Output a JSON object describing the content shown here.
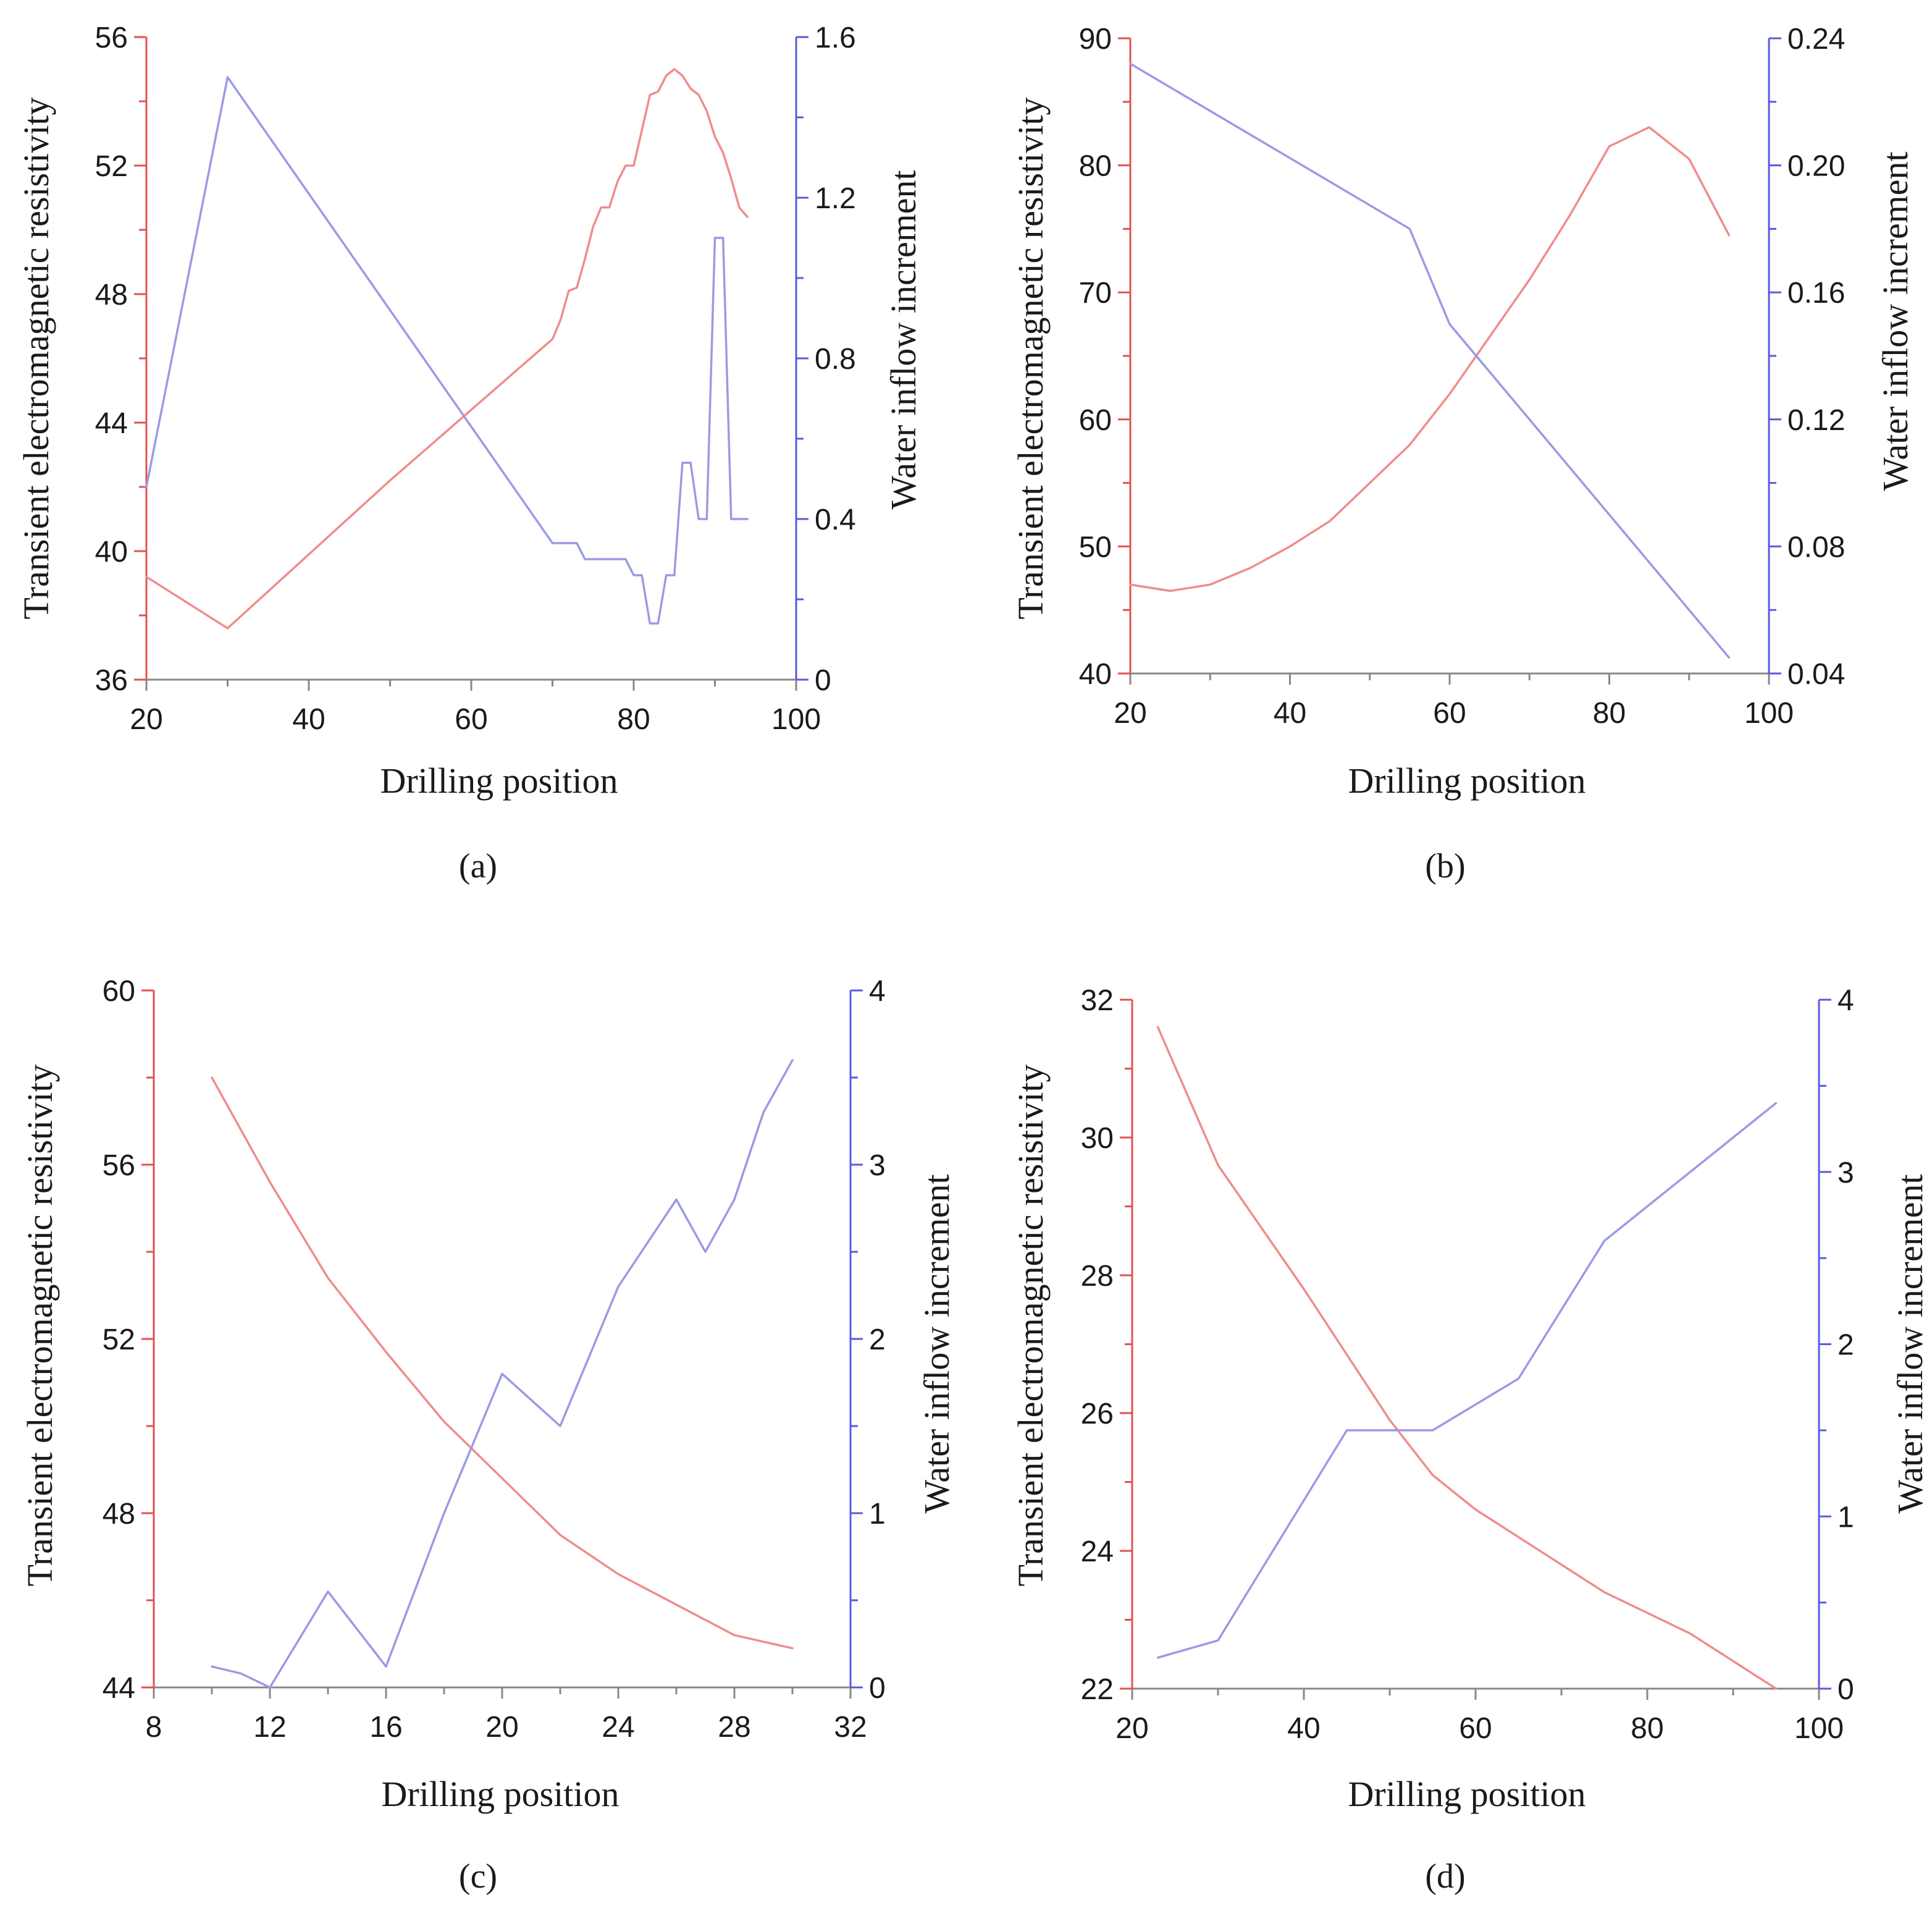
{
  "figure": {
    "left_color": "#e35050",
    "right_color": "#5a5ae0",
    "left_line_color": "#f08c8c",
    "right_line_color": "#9a9ae6",
    "x_axis_color": "#888888"
  },
  "chart_data": [
    {
      "type": "line",
      "panel_label": "(a)",
      "xlabel": "Drilling position",
      "ylabel": "Transient electromagnetic resistivity",
      "y2label": "Water inflow increment",
      "xlim": [
        20,
        100
      ],
      "xticks": [
        "20",
        "40",
        "60",
        "80",
        "100"
      ],
      "ylim": [
        36,
        56
      ],
      "yticks": [
        "36",
        "40",
        "44",
        "48",
        "52",
        "56"
      ],
      "y2lim": [
        0,
        1.6
      ],
      "y2ticks": [
        "0",
        "0.4",
        "0.8",
        "1.2",
        "1.6"
      ],
      "series": [
        {
          "name": "Transient electromagnetic resistivity",
          "axis": "left",
          "x": [
            20,
            30,
            40,
            50,
            60,
            70,
            71,
            72,
            73,
            74,
            75,
            76,
            77,
            78,
            79,
            80,
            81,
            82,
            83,
            84,
            85,
            86,
            87,
            88,
            89,
            90,
            91,
            92,
            93,
            94
          ],
          "y": [
            39.2,
            37.6,
            39.9,
            42.2,
            44.4,
            46.6,
            47.2,
            48.1,
            48.2,
            49.1,
            50.1,
            50.7,
            50.7,
            51.5,
            52.0,
            52.0,
            53.1,
            54.2,
            54.3,
            54.8,
            55.0,
            54.8,
            54.4,
            54.2,
            53.7,
            52.9,
            52.4,
            51.6,
            50.7,
            50.4
          ]
        },
        {
          "name": "Water inflow increment",
          "axis": "right",
          "x": [
            20,
            30,
            70,
            72,
            73,
            74,
            77,
            79,
            80,
            81,
            82,
            83,
            84,
            85,
            86,
            87,
            88,
            89,
            90,
            91,
            92,
            93,
            94
          ],
          "y": [
            0.48,
            1.5,
            0.34,
            0.34,
            0.34,
            0.3,
            0.3,
            0.3,
            0.26,
            0.26,
            0.14,
            0.14,
            0.26,
            0.26,
            0.54,
            0.54,
            0.4,
            0.4,
            1.1,
            1.1,
            0.4,
            0.4,
            0.4
          ]
        }
      ]
    },
    {
      "type": "line",
      "panel_label": "(b)",
      "xlabel": "Drilling position",
      "ylabel": "Transient electromagnetic resistivity",
      "y2label": "Water inflow increment",
      "xlim": [
        20,
        100
      ],
      "xticks": [
        "20",
        "40",
        "60",
        "80",
        "100"
      ],
      "ylim": [
        40,
        90
      ],
      "yticks": [
        "40",
        "50",
        "60",
        "70",
        "80",
        "90"
      ],
      "y2lim": [
        0.04,
        0.24
      ],
      "y2ticks": [
        "0.04",
        "0.08",
        "0.12",
        "0.16",
        "0.20",
        "0.24"
      ],
      "series": [
        {
          "name": "Transient electromagnetic resistivity",
          "axis": "left",
          "x": [
            20,
            25,
            30,
            35,
            40,
            45,
            50,
            55,
            60,
            65,
            70,
            75,
            80,
            85,
            90,
            95
          ],
          "y": [
            47.0,
            46.5,
            47.0,
            48.3,
            50.0,
            52.0,
            55.0,
            58.0,
            62.0,
            66.5,
            71.0,
            76.0,
            81.5,
            83.0,
            80.5,
            74.5
          ]
        },
        {
          "name": "Water inflow increment",
          "axis": "right",
          "x": [
            20,
            55,
            60,
            95
          ],
          "y": [
            0.232,
            0.18,
            0.15,
            0.045
          ]
        }
      ]
    },
    {
      "type": "line",
      "panel_label": "(c)",
      "xlabel": "Drilling position",
      "ylabel": "Transient electromagnetic resistivity",
      "y2label": "Water inflow increment",
      "xlim": [
        8,
        32
      ],
      "xticks": [
        "8",
        "12",
        "16",
        "20",
        "24",
        "28",
        "32"
      ],
      "ylim": [
        44,
        60
      ],
      "yticks": [
        "44",
        "48",
        "52",
        "56",
        "60"
      ],
      "y2lim": [
        0,
        4
      ],
      "y2ticks": [
        "0",
        "1",
        "2",
        "3",
        "4"
      ],
      "series": [
        {
          "name": "Transient electromagnetic resistivity",
          "axis": "left",
          "x": [
            10,
            12,
            14,
            16,
            18,
            20,
            22,
            24,
            26,
            28,
            30
          ],
          "y": [
            58.0,
            55.6,
            53.4,
            51.7,
            50.1,
            48.8,
            47.5,
            46.6,
            45.9,
            45.2,
            44.9
          ]
        },
        {
          "name": "Water inflow increment",
          "axis": "right",
          "x": [
            10,
            11,
            12,
            14,
            16,
            18,
            20,
            22,
            24,
            26,
            27,
            28,
            29,
            30
          ],
          "y": [
            0.12,
            0.08,
            0.0,
            0.55,
            0.12,
            1.0,
            1.8,
            1.5,
            2.3,
            2.8,
            2.5,
            2.8,
            3.3,
            3.6
          ]
        }
      ]
    },
    {
      "type": "line",
      "panel_label": "(d)",
      "xlabel": "Drilling position",
      "ylabel": "Transient electromagnetic resistivity",
      "y2label": "Water inflow increment",
      "xlim": [
        20,
        100
      ],
      "xticks": [
        "20",
        "40",
        "60",
        "80",
        "100"
      ],
      "ylim": [
        22,
        32
      ],
      "yticks": [
        "22",
        "24",
        "26",
        "28",
        "30",
        "32"
      ],
      "y2lim": [
        0,
        4
      ],
      "y2ticks": [
        "0",
        "1",
        "2",
        "3",
        "4"
      ],
      "series": [
        {
          "name": "Transient electromagnetic resistivity",
          "axis": "left",
          "x": [
            23,
            30,
            40,
            50,
            55,
            60,
            65,
            70,
            75,
            80,
            85,
            90,
            95
          ],
          "y": [
            31.6,
            29.6,
            27.8,
            25.9,
            25.1,
            24.6,
            24.2,
            23.8,
            23.4,
            23.1,
            22.8,
            22.4,
            22.0
          ]
        },
        {
          "name": "Water inflow increment",
          "axis": "right",
          "x": [
            23,
            30,
            45,
            55,
            65,
            75,
            95
          ],
          "y": [
            0.18,
            0.28,
            1.5,
            1.5,
            1.8,
            2.6,
            3.4
          ]
        }
      ]
    }
  ]
}
